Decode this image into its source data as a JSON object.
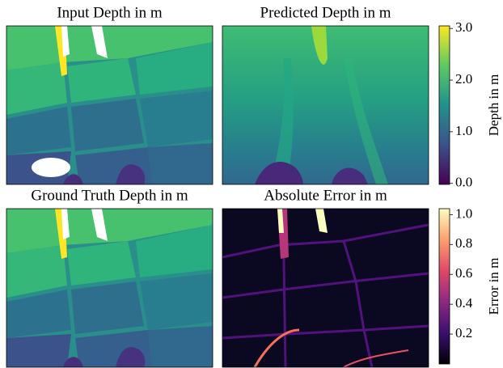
{
  "chart_data": [
    {
      "type": "heatmap",
      "title": "Input Depth in m"
    },
    {
      "type": "heatmap",
      "title": "Predicted Depth in m"
    },
    {
      "type": "heatmap",
      "title": "Ground Truth Depth in m"
    },
    {
      "type": "heatmap",
      "title": "Absolute Error in m"
    },
    {
      "type": "colorbar",
      "label": "Depth in m",
      "ylim": [
        -0.02,
        3.05
      ],
      "yticks": [
        {
          "value": 0,
          "label": "0.0"
        },
        {
          "value": 1,
          "label": "1.0"
        },
        {
          "value": 2,
          "label": "2.0"
        },
        {
          "value": 3,
          "label": "3.0"
        }
      ],
      "colors": [
        "#440154",
        "#3b528b",
        "#21918c",
        "#5ec962",
        "#fde725"
      ]
    },
    {
      "type": "colorbar",
      "label": "Error in m",
      "ylim": [
        0,
        1.04
      ],
      "yticks": [
        0.2,
        0.4,
        0.6,
        0.8,
        {
          "value": 1,
          "label": "1.0"
        }
      ],
      "colors": [
        "#000004",
        "#3b0f70",
        "#8c2981",
        "#de4968",
        "#fe9f6d",
        "#fcfdbf"
      ]
    }
  ]
}
